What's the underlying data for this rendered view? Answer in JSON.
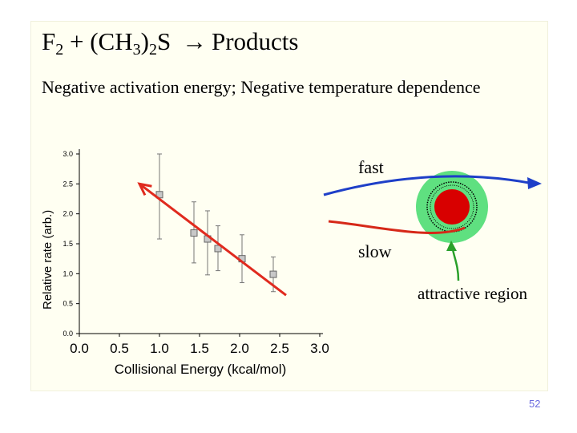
{
  "slide": {
    "title_prefix": "F",
    "title_sub1": "2",
    "title_mid": " + (CH",
    "title_sub2": "3",
    "title_paren": ")",
    "title_sub3": "2",
    "title_s": "S",
    "title_arrow": "→",
    "title_suffix": "Products",
    "subtitle": "Negative activation energy; Negative temperature dependence",
    "page_number": "52"
  },
  "diagram": {
    "fast_label": "fast",
    "slow_label": "slow",
    "attractive_label": "attractive region",
    "colors": {
      "fast": "#1e3fc8",
      "slow": "#d62818",
      "halo": "#5fe080",
      "core": "#d80000",
      "pointer": "#2aa02a"
    }
  },
  "chart_data": {
    "type": "scatter",
    "xlabel": "Collisional Energy (kcal/mol)",
    "ylabel": "Relative rate (arb.)",
    "xlim": [
      0.0,
      3.0
    ],
    "ylim": [
      0.0,
      3.0
    ],
    "x_ticks": [
      "0.0",
      "0.5",
      "1.0",
      "1.5",
      "2.0",
      "2.5",
      "3.0"
    ],
    "y_ticks": [
      "0.0",
      "0.5",
      "1.0",
      "1.5",
      "2.0",
      "2.5",
      "3.0"
    ],
    "points": [
      {
        "x": 1.0,
        "y": 2.32,
        "err_low": 1.58,
        "err_high": 3.0
      },
      {
        "x": 1.43,
        "y": 1.68,
        "err_low": 1.18,
        "err_high": 2.2
      },
      {
        "x": 1.6,
        "y": 1.58,
        "err_low": 0.98,
        "err_high": 2.05
      },
      {
        "x": 1.73,
        "y": 1.42,
        "err_low": 1.05,
        "err_high": 1.8
      },
      {
        "x": 2.03,
        "y": 1.25,
        "err_low": 0.85,
        "err_high": 1.65
      },
      {
        "x": 2.42,
        "y": 0.99,
        "err_low": 0.7,
        "err_high": 1.28
      }
    ],
    "trend_arrow": {
      "x_start": 2.58,
      "y_start": 0.64,
      "x_end": 0.75,
      "y_end": 2.5,
      "color": "#e02a1e"
    },
    "grid": false
  }
}
